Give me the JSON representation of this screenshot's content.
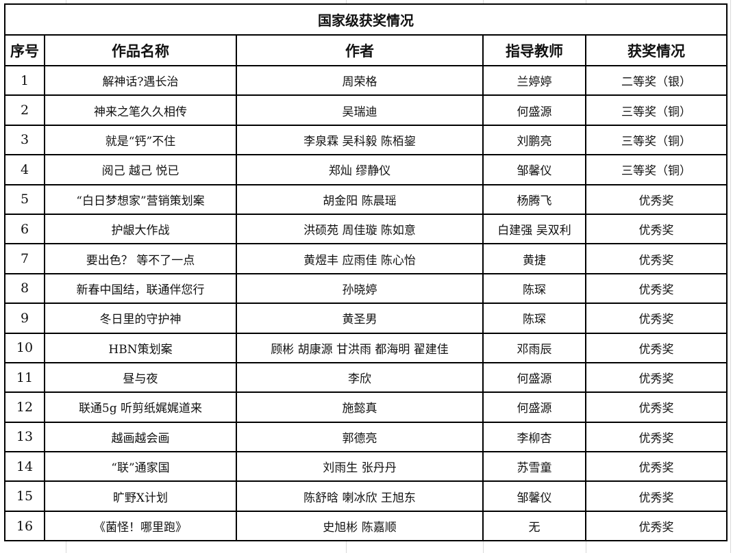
{
  "title": "国家级获奖情况",
  "columns": [
    "序号",
    "作品名称",
    "作者",
    "指导教师",
    "获奖情况"
  ],
  "rows": [
    [
      "1",
      "解神话?遇长治",
      "周荣格",
      "兰婷婷",
      "二等奖（银）"
    ],
    [
      "2",
      "神来之笔久久相传",
      "吴瑞迪",
      "何盛源",
      "三等奖（铜）"
    ],
    [
      "3",
      "就是“钙”不住",
      "李泉霖 吴科毅 陈栢鋆",
      "刘鹏亮",
      "三等奖（铜）"
    ],
    [
      "4",
      "阅己 越己 悦已",
      "郑灿 缪静仪",
      "邹馨仪",
      "三等奖（铜）"
    ],
    [
      "5",
      "“白日梦想家”营销策划案",
      "胡金阳  陈晨瑶",
      "杨腾飞",
      "优秀奖"
    ],
    [
      "6",
      "护龈大作战",
      "洪硕苑  周佳璇  陈如意",
      "白建强 吴双利",
      "优秀奖"
    ],
    [
      "7",
      "要出色？ 等不了一点",
      "黄煜丰 应雨佳 陈心怡",
      "黄捷",
      "优秀奖"
    ],
    [
      "8",
      "新春中国结，联通伴您行",
      "孙晓婷",
      "陈琛",
      "优秀奖"
    ],
    [
      "9",
      "冬日里的守护神",
      "黄圣男",
      "陈琛",
      "优秀奖"
    ],
    [
      "10",
      "HBN策划案",
      "顾彬 胡康源 甘洪雨 都海明 翟建佳",
      "邓雨辰",
      "优秀奖"
    ],
    [
      "11",
      "昼与夜",
      "李欣",
      "何盛源",
      "优秀奖"
    ],
    [
      "12",
      "联通5g 听剪纸娓娓道来",
      "施懿真",
      "何盛源",
      "优秀奖"
    ],
    [
      "13",
      "越画越会画",
      "郭德亮",
      "李柳杏",
      "优秀奖"
    ],
    [
      "14",
      "“联”通家国",
      "刘雨生 张丹丹",
      "苏雪童",
      "优秀奖"
    ],
    [
      "15",
      "旷野X计划",
      "陈舒晗 喇冰欣 王旭东",
      "邹馨仪",
      "优秀奖"
    ],
    [
      "16",
      "《菌怪！哪里跑》",
      "史旭彬  陈嘉顺",
      "无",
      "优秀奖"
    ]
  ]
}
